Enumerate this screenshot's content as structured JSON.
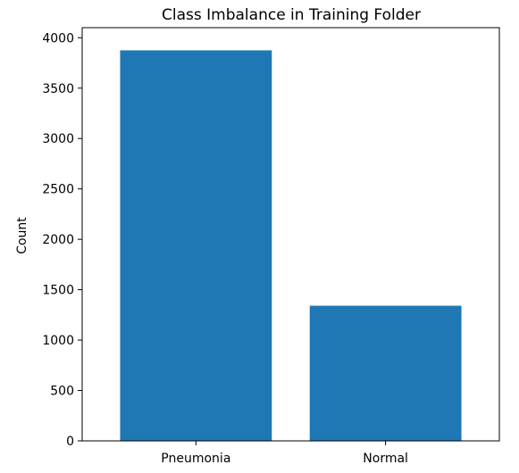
{
  "chart_data": {
    "type": "bar",
    "title": "Class Imbalance in Training Folder",
    "xlabel": "",
    "ylabel": "Count",
    "categories": [
      "Pneumonia",
      "Normal"
    ],
    "values": [
      3875,
      1341
    ],
    "ylim": [
      0,
      4100
    ],
    "yticks": [
      0,
      500,
      1000,
      1500,
      2000,
      2500,
      3000,
      3500,
      4000
    ],
    "bar_color": "#1f77b4",
    "grid": false
  }
}
